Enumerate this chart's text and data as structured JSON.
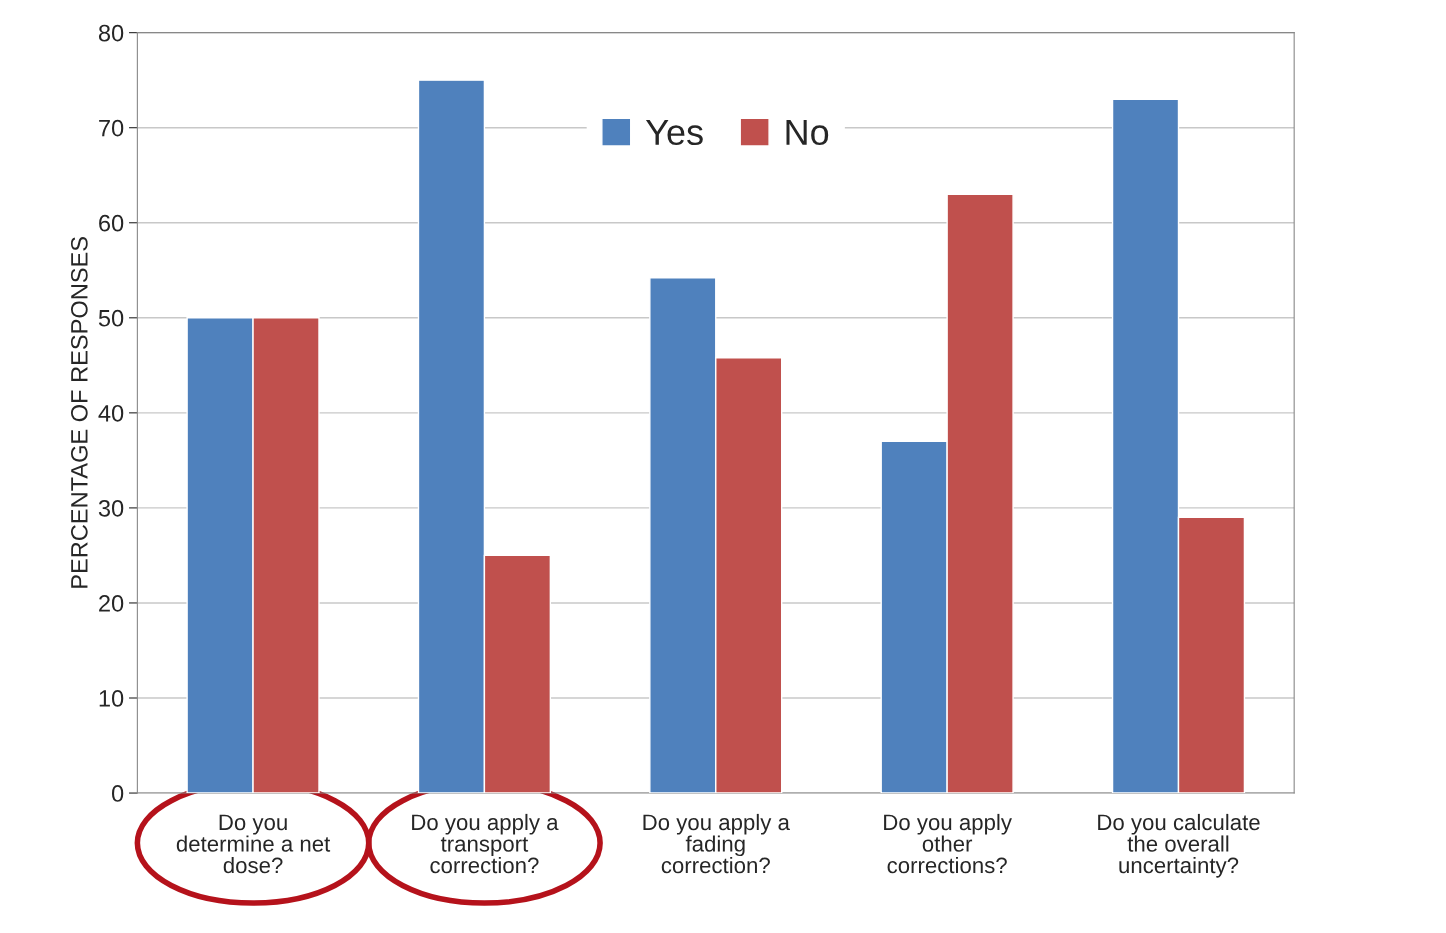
{
  "chart_data": {
    "type": "bar",
    "ylabel": "PERCENTAGE OF RESPONSES",
    "categories": [
      "Do you\ndetermine a net\ndose?",
      "Do you apply a\ntransport\ncorrection?",
      "Do you apply a\nfading\ncorrection?",
      "Do you apply\nother\ncorrections?",
      "Do you calculate\nthe overall\nuncertainty?"
    ],
    "series": [
      {
        "name": "Yes",
        "color": "#4f81bd",
        "values": [
          50,
          75,
          54.2,
          37,
          73
        ]
      },
      {
        "name": "No",
        "color": "#c0504d",
        "values": [
          50,
          25,
          45.8,
          63,
          29
        ]
      }
    ],
    "ylim": [
      0,
      80
    ],
    "yticks": [
      0,
      10,
      20,
      30,
      40,
      50,
      60,
      70,
      80
    ],
    "grid": "y",
    "legend": "top"
  }
}
